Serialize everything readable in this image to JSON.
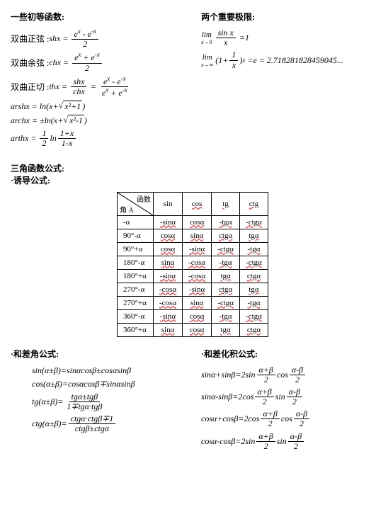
{
  "h1": "一些初等函数:",
  "h2": "两个重要极限:",
  "h3": "三角函数公式:",
  "h4": "·诱导公式:",
  "h5": "·和差角公式:",
  "h6": "·和差化积公式:",
  "shx_label": "双曲正弦 :",
  "chx_label": "双曲余弦 :",
  "thx_label": "双曲正切 :",
  "shx": "shx",
  "chx": "chx",
  "thx": "thx",
  "ex": "e",
  "x": "x",
  "mx": "-x",
  "plus": "+",
  "minus": "-",
  "two": "2",
  "eq": "=",
  "one": "1",
  "pm": "±",
  "mp": "∓",
  "dot": "·",
  "arshx": "arshx",
  "archx": "archx",
  "arthx": "arthx",
  "ln": "ln",
  "half": "1",
  "x2p1": "x²+1",
  "x2m1": "x²-1",
  "opx": "1+x",
  "omx": "1-x",
  "lim": "lim",
  "xto0": "x→0",
  "xtoinf": "x→∞",
  "sinx": "sin x",
  "e_val": "e = 2.718281828459045...",
  "thead_fn": "函数",
  "thead_a": "角 A",
  "th_sin": "sin",
  "th_cos": "cos",
  "th_tg": "tg",
  "th_ctg": "ctg",
  "rows": [
    {
      "a": "-α",
      "v": [
        "-sinα",
        "cosα",
        "-tgα",
        "-ctgα"
      ]
    },
    {
      "a": "90°-α",
      "v": [
        "cosα",
        "sinα",
        "ctgα",
        "tgα"
      ]
    },
    {
      "a": "90°+α",
      "v": [
        "cosα",
        "-sinα",
        "-ctgα",
        "-tgα"
      ]
    },
    {
      "a": "180°-α",
      "v": [
        "sinα",
        "-cosα",
        "-tgα",
        "-ctgα"
      ]
    },
    {
      "a": "180°+α",
      "v": [
        "-sinα",
        "-cosα",
        "tgα",
        "ctgα"
      ]
    },
    {
      "a": "270°-α",
      "v": [
        "-cosα",
        "-sinα",
        "ctgα",
        "tgα"
      ]
    },
    {
      "a": "270°+α",
      "v": [
        "-cosα",
        "sinα",
        "-ctgα",
        "-tgα"
      ]
    },
    {
      "a": "360°-α",
      "v": [
        "-sinα",
        "cosα",
        "-tgα",
        "-ctgα"
      ]
    },
    {
      "a": "360°+α",
      "v": [
        "sinα",
        "cosα",
        "tgα",
        "ctgα"
      ]
    }
  ],
  "f1_l": "sin(α±β)",
  "f1_r": "sinαcosβ±cosαsinβ",
  "f2_l": "cos(α±β)",
  "f2_r": "cosαcosβ∓sinαsinβ",
  "f3_l": "tg(α±β)",
  "f3_n": "tgα±tgβ",
  "f3_d": "1∓tgα·tgβ",
  "f4_l": "ctg(α±β)",
  "f4_n": "ctgα·ctgβ∓1",
  "f4_d": "ctgβ±ctgα",
  "p1_l": "sinα+sinβ",
  "p1_a": "2sin",
  "p1_b": "cos",
  "p2_l": "sinα-sinβ",
  "p2_a": "2cos",
  "p2_b": "sin",
  "p3_l": "cosα+cosβ",
  "p3_a": "2cos",
  "p3_b": "cos",
  "p4_l": "cosα-cosβ",
  "p4_a": "2sin",
  "p4_b": "sin",
  "ab_p": "α+β",
  "ab_m": "α-β",
  "lp": "(",
  "rp": ")",
  "sqrt": "√"
}
